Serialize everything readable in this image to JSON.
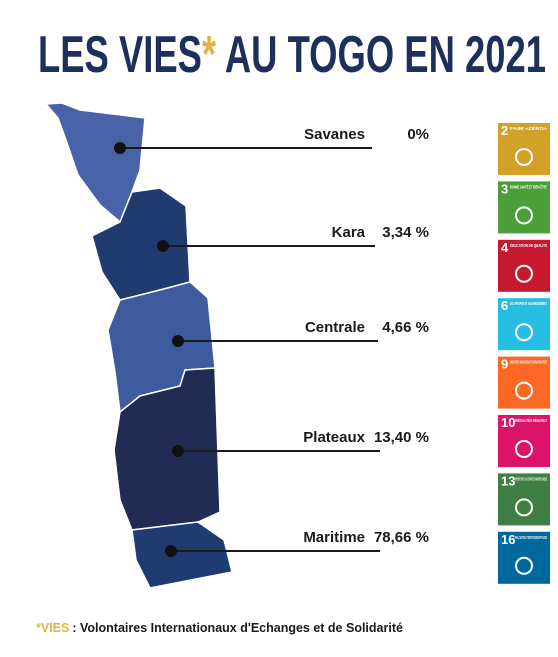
{
  "title": {
    "part1": "LES VIES",
    "asterisk": "*",
    "part2": " AU TOGO EN 2021"
  },
  "regions": [
    {
      "name": "Savanes",
      "value": "0%"
    },
    {
      "name": "Kara",
      "value": "3,34 %"
    },
    {
      "name": "Centrale",
      "value": "4,66 %"
    },
    {
      "name": "Plateaux",
      "value": "13,40 %"
    },
    {
      "name": "Maritime",
      "value": "78,66 %"
    }
  ],
  "sdgs": [
    {
      "number": "2",
      "label": "FAIM «ZÉRO»",
      "color": "#d3a029"
    },
    {
      "number": "3",
      "label": "BONNE SANTÉ ET BIEN-ÊTRE",
      "color": "#4c9f38"
    },
    {
      "number": "4",
      "label": "ÉDUCATION DE QUALITÉ",
      "color": "#c5192d"
    },
    {
      "number": "6",
      "label": "EAU PROPRE ET ASSAINISSEMENT",
      "color": "#26bde2"
    },
    {
      "number": "9",
      "label": "INDUSTRIE, INNOVATION ET INFRASTRUCTURE",
      "color": "#fd6925"
    },
    {
      "number": "10",
      "label": "INÉGALITÉS RÉDUITES",
      "color": "#dd1367"
    },
    {
      "number": "13",
      "label": "MESURES RELATIVES À LA LUTTE CONTRE LES CHANGEMENTS CLIMATIQUES",
      "color": "#3f7e44"
    },
    {
      "number": "16",
      "label": "PAIX, JUSTICE ET INSTITUTIONS EFFICACES",
      "color": "#00689d"
    }
  ],
  "footnote": {
    "term": "*VIES",
    "text": ": Volontaires Internationaux d'Echanges et de Solidarité"
  }
}
